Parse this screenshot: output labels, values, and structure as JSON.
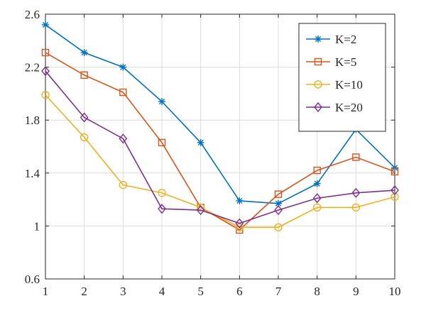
{
  "chart_data": {
    "type": "line",
    "x": [
      1,
      2,
      3,
      4,
      5,
      6,
      7,
      8,
      9,
      10
    ],
    "xlim": [
      1,
      10
    ],
    "ylim": [
      0.6,
      2.6
    ],
    "xticks": [
      "1",
      "2",
      "3",
      "4",
      "5",
      "6",
      "7",
      "8",
      "9",
      "10"
    ],
    "yticks": [
      "0.6",
      "1",
      "1.4",
      "1.8",
      "2.2",
      "2.6"
    ],
    "ytick_values": [
      0.6,
      1.0,
      1.4,
      1.8,
      2.2,
      2.6
    ],
    "grid": true,
    "legend_position": "top-right",
    "series": [
      {
        "name": "K=2",
        "color": "#0072BD",
        "marker": "asterisk",
        "values": [
          2.52,
          2.31,
          2.2,
          1.94,
          1.63,
          1.19,
          1.17,
          1.32,
          1.73,
          1.44
        ]
      },
      {
        "name": "K=5",
        "color": "#D95319",
        "marker": "square",
        "values": [
          2.31,
          2.14,
          2.01,
          1.63,
          1.14,
          0.97,
          1.24,
          1.42,
          1.52,
          1.41
        ]
      },
      {
        "name": "K=10",
        "color": "#EDB120",
        "marker": "circle",
        "values": [
          1.99,
          1.67,
          1.31,
          1.25,
          1.14,
          0.99,
          0.99,
          1.14,
          1.14,
          1.22
        ]
      },
      {
        "name": "K=20",
        "color": "#7E2F8E",
        "marker": "diamond",
        "values": [
          2.17,
          1.82,
          1.66,
          1.13,
          1.12,
          1.02,
          1.12,
          1.21,
          1.25,
          1.27
        ]
      }
    ]
  }
}
